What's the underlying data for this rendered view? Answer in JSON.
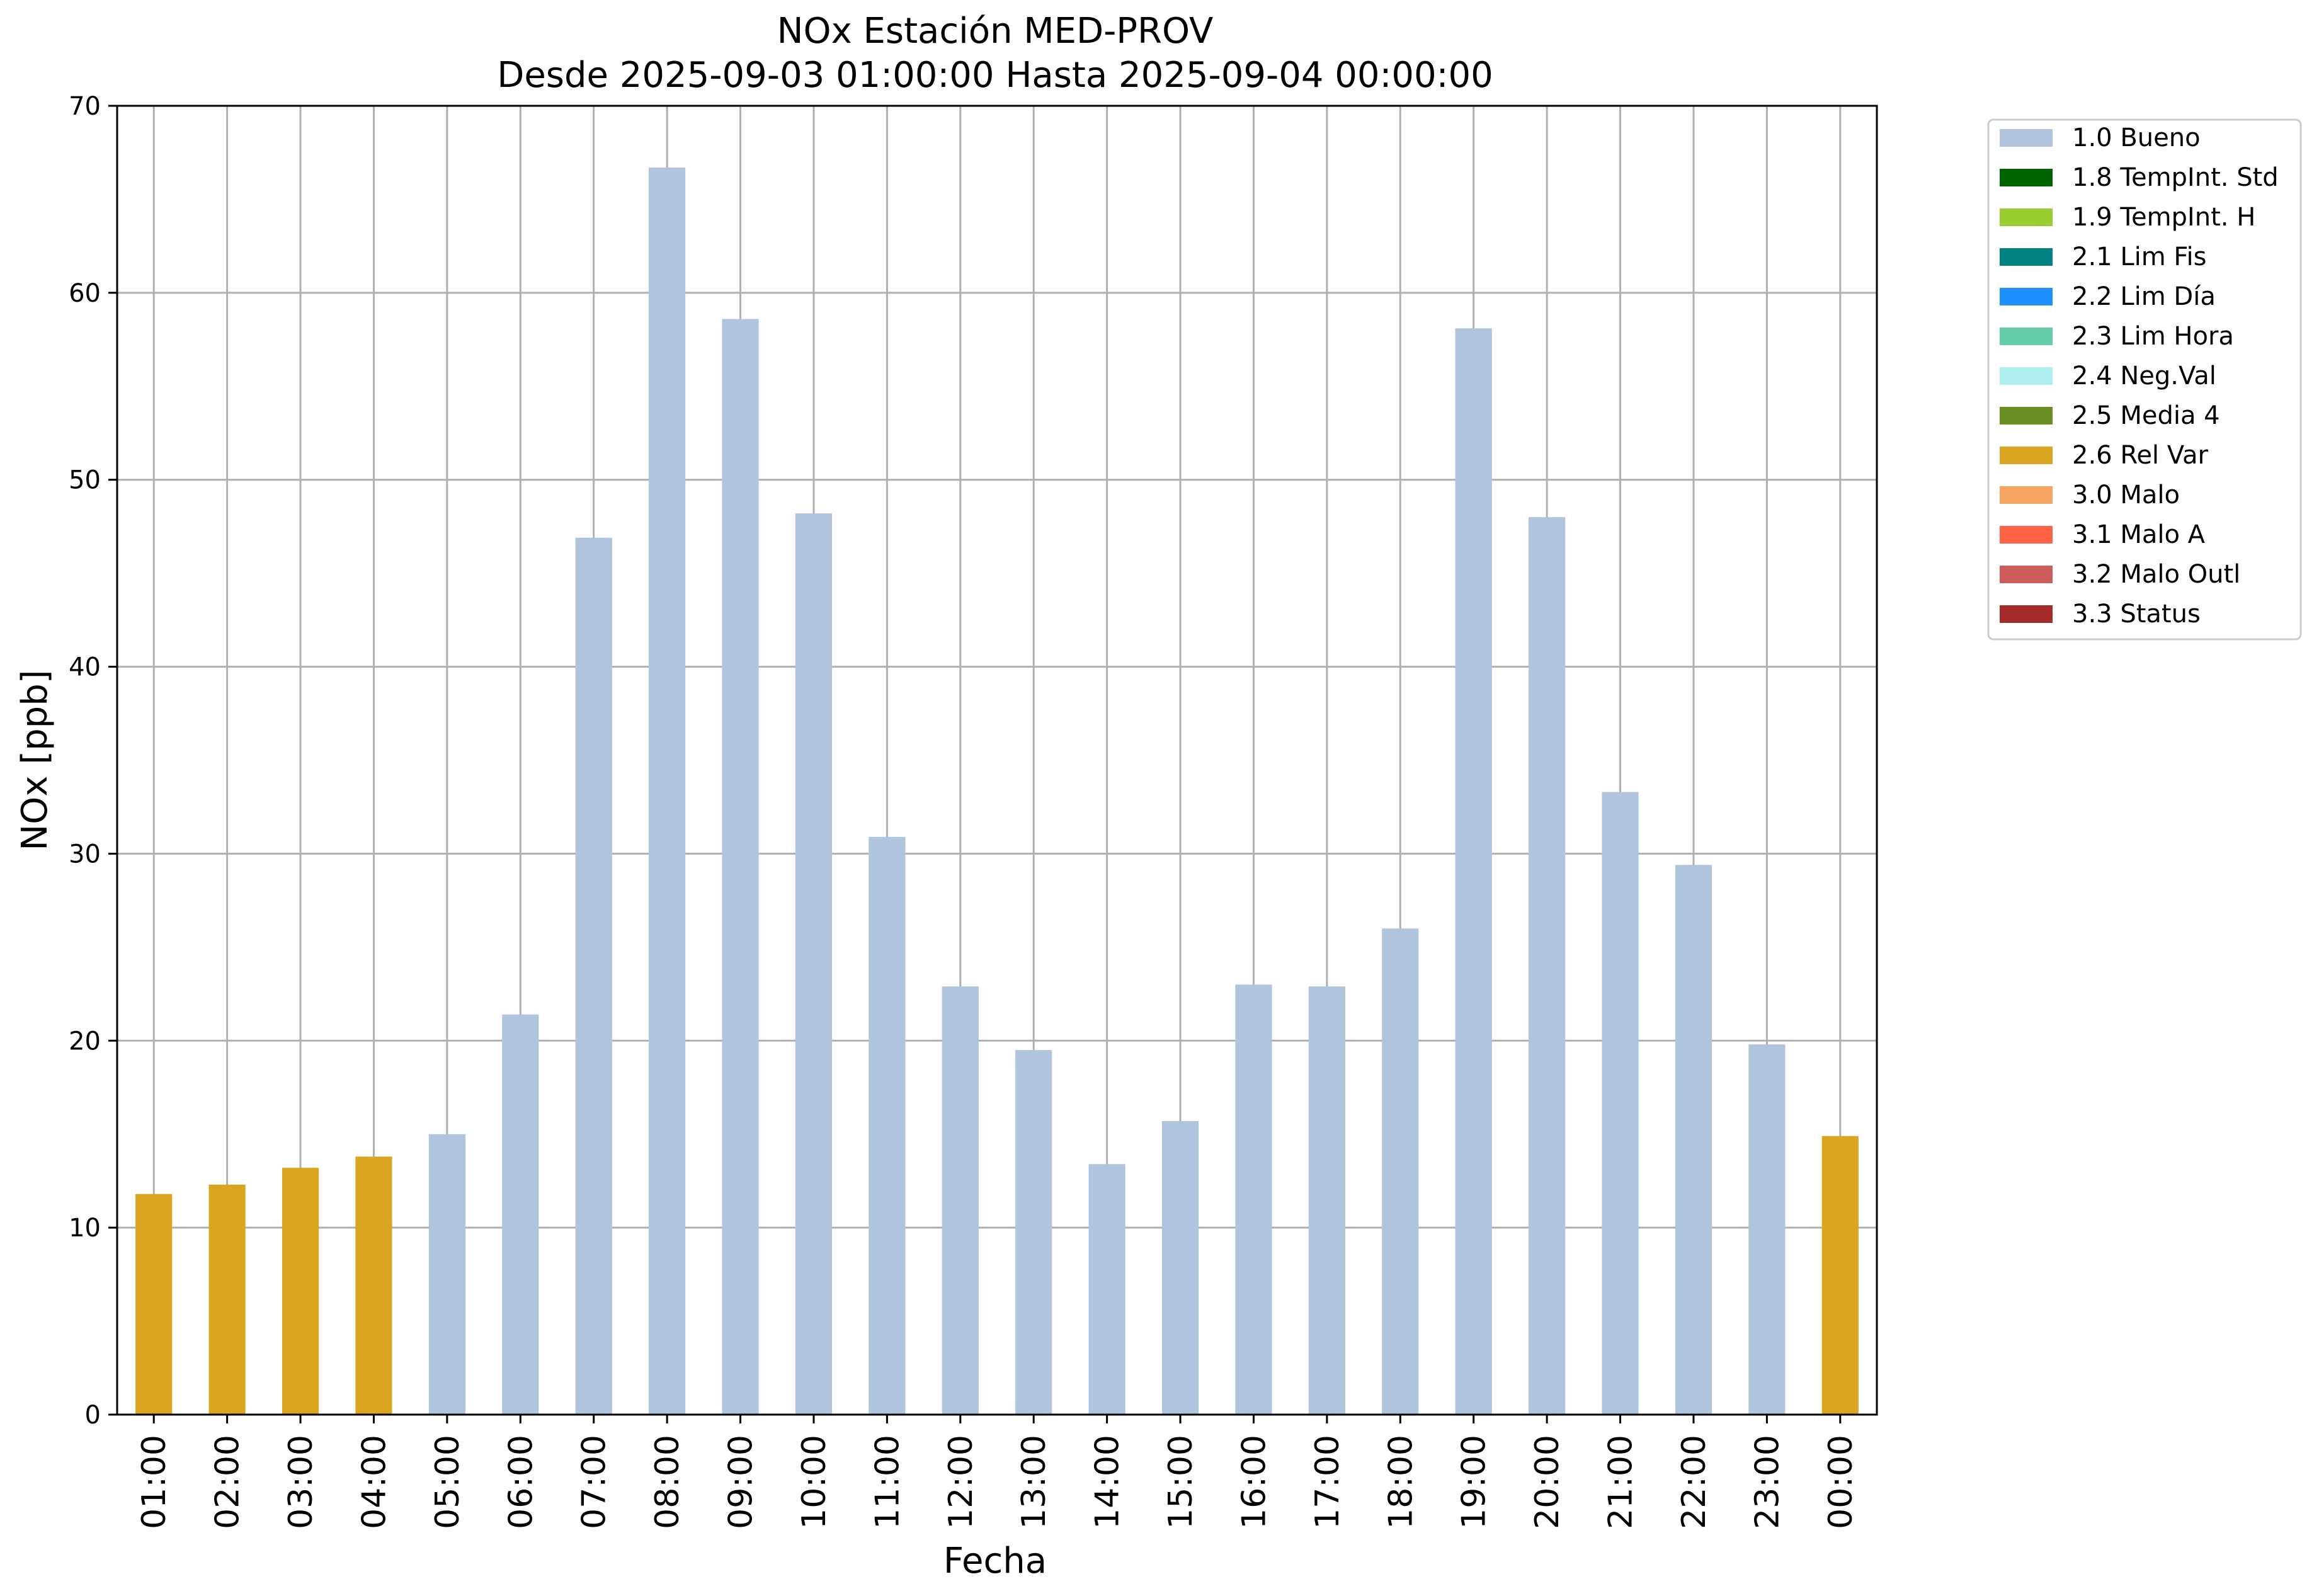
{
  "chart_data": {
    "type": "bar",
    "title": "NOx Estación MED-PROV",
    "subtitle": "Desde 2025-09-03 01:00:00 Hasta 2025-09-04 00:00:00",
    "xlabel": "Fecha",
    "ylabel": "NOx [ppb]",
    "ylim": [
      0,
      70
    ],
    "yticks": [
      0,
      10,
      20,
      30,
      40,
      50,
      60,
      70
    ],
    "grid": true,
    "legend_position": "outside-top-right",
    "categories": [
      "01:00",
      "02:00",
      "03:00",
      "04:00",
      "05:00",
      "06:00",
      "07:00",
      "08:00",
      "09:00",
      "10:00",
      "11:00",
      "12:00",
      "13:00",
      "14:00",
      "15:00",
      "16:00",
      "17:00",
      "18:00",
      "19:00",
      "20:00",
      "21:00",
      "22:00",
      "23:00",
      "00:00"
    ],
    "values": [
      11.8,
      12.3,
      13.2,
      13.8,
      15.0,
      21.4,
      46.9,
      66.7,
      58.6,
      48.2,
      30.9,
      22.9,
      19.5,
      13.4,
      15.7,
      23.0,
      22.9,
      26.0,
      58.1,
      48.0,
      33.3,
      29.4,
      19.8,
      14.9
    ],
    "flags": [
      "2.6 Rel Var",
      "2.6 Rel Var",
      "2.6 Rel Var",
      "2.6 Rel Var",
      "1.0 Bueno",
      "1.0 Bueno",
      "1.0 Bueno",
      "1.0 Bueno",
      "1.0 Bueno",
      "1.0 Bueno",
      "1.0 Bueno",
      "1.0 Bueno",
      "1.0 Bueno",
      "1.0 Bueno",
      "1.0 Bueno",
      "1.0 Bueno",
      "1.0 Bueno",
      "1.0 Bueno",
      "1.0 Bueno",
      "1.0 Bueno",
      "1.0 Bueno",
      "1.0 Bueno",
      "1.0 Bueno",
      "2.6 Rel Var"
    ],
    "legend": [
      {
        "label": "1.0 Bueno",
        "color": "#b0c4de"
      },
      {
        "label": "1.8 TempInt. Std",
        "color": "#006400"
      },
      {
        "label": "1.9 TempInt. H",
        "color": "#9acd32"
      },
      {
        "label": "2.1 Lim Fis",
        "color": "#008080"
      },
      {
        "label": "2.2 Lim Día",
        "color": "#1e90ff"
      },
      {
        "label": "2.3 Lim Hora",
        "color": "#66cdaa"
      },
      {
        "label": "2.4 Neg.Val",
        "color": "#afeeee"
      },
      {
        "label": "2.5 Media 4",
        "color": "#6b8e23"
      },
      {
        "label": "2.6 Rel Var",
        "color": "#daa520"
      },
      {
        "label": "3.0 Malo",
        "color": "#f4a460"
      },
      {
        "label": "3.1 Malo A",
        "color": "#ff6347"
      },
      {
        "label": "3.2 Malo Outl",
        "color": "#cd5c5c"
      },
      {
        "label": "3.3 Status",
        "color": "#a52a2a"
      }
    ]
  }
}
